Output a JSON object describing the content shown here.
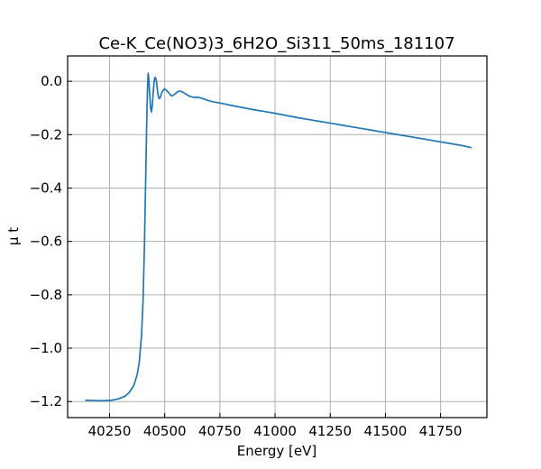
{
  "chart_data": {
    "type": "line",
    "title": "Ce-K_Ce(NO3)3_6H2O_Si311_50ms_181107",
    "xlabel": "Energy [eV]",
    "ylabel": "μ t",
    "xlim": [
      40060,
      41960
    ],
    "ylim": [
      -1.26,
      0.095
    ],
    "grid": true,
    "xticks": [
      40250,
      40500,
      40750,
      41000,
      41250,
      41500,
      41750
    ],
    "xtick_labels": [
      "40250",
      "40500",
      "40750",
      "41000",
      "41250",
      "41500",
      "41750"
    ],
    "yticks": [
      0.0,
      -0.2,
      -0.4,
      -0.6,
      -0.8,
      -1.0,
      -1.2
    ],
    "ytick_labels": [
      "0.0",
      "−0.2",
      "−0.4",
      "−0.6",
      "−0.8",
      "−1.0",
      "−1.2"
    ],
    "series": [
      {
        "color": "#1f77b4",
        "x": [
          40140,
          40180,
          40220,
          40260,
          40290,
          40320,
          40340,
          40360,
          40375,
          40385,
          40395,
          40402,
          40408,
          40413,
          40417,
          40420,
          40423,
          40425,
          40428,
          40432,
          40436,
          40440,
          40444,
          40448,
          40452,
          40456,
          40460,
          40464,
          40468,
          40472,
          40476,
          40480,
          40484,
          40488,
          40492,
          40496,
          40500,
          40510,
          40520,
          40530,
          40540,
          40550,
          40560,
          40570,
          40580,
          40590,
          40600,
          40610,
          40620,
          40630,
          40640,
          40650,
          40660,
          40670,
          40680,
          40690,
          40700,
          40720,
          40740,
          40760,
          40800,
          40850,
          40900,
          40950,
          41000,
          41050,
          41100,
          41150,
          41200,
          41250,
          41300,
          41350,
          41400,
          41450,
          41500,
          41550,
          41600,
          41650,
          41700,
          41750,
          41800,
          41850,
          41890
        ],
        "y": [
          -1.195,
          -1.196,
          -1.197,
          -1.195,
          -1.19,
          -1.18,
          -1.165,
          -1.14,
          -1.1,
          -1.05,
          -0.95,
          -0.82,
          -0.62,
          -0.4,
          -0.22,
          -0.09,
          0.0,
          0.03,
          0.01,
          -0.05,
          -0.1,
          -0.115,
          -0.09,
          -0.04,
          0.0,
          0.015,
          0.01,
          -0.01,
          -0.04,
          -0.06,
          -0.065,
          -0.06,
          -0.05,
          -0.04,
          -0.035,
          -0.03,
          -0.03,
          -0.035,
          -0.045,
          -0.055,
          -0.052,
          -0.045,
          -0.038,
          -0.037,
          -0.04,
          -0.045,
          -0.05,
          -0.055,
          -0.058,
          -0.06,
          -0.06,
          -0.06,
          -0.062,
          -0.064,
          -0.067,
          -0.07,
          -0.073,
          -0.077,
          -0.08,
          -0.083,
          -0.09,
          -0.098,
          -0.106,
          -0.113,
          -0.12,
          -0.128,
          -0.136,
          -0.143,
          -0.15,
          -0.157,
          -0.164,
          -0.171,
          -0.178,
          -0.185,
          -0.192,
          -0.199,
          -0.206,
          -0.213,
          -0.22,
          -0.227,
          -0.234,
          -0.241,
          -0.249
        ]
      }
    ]
  }
}
